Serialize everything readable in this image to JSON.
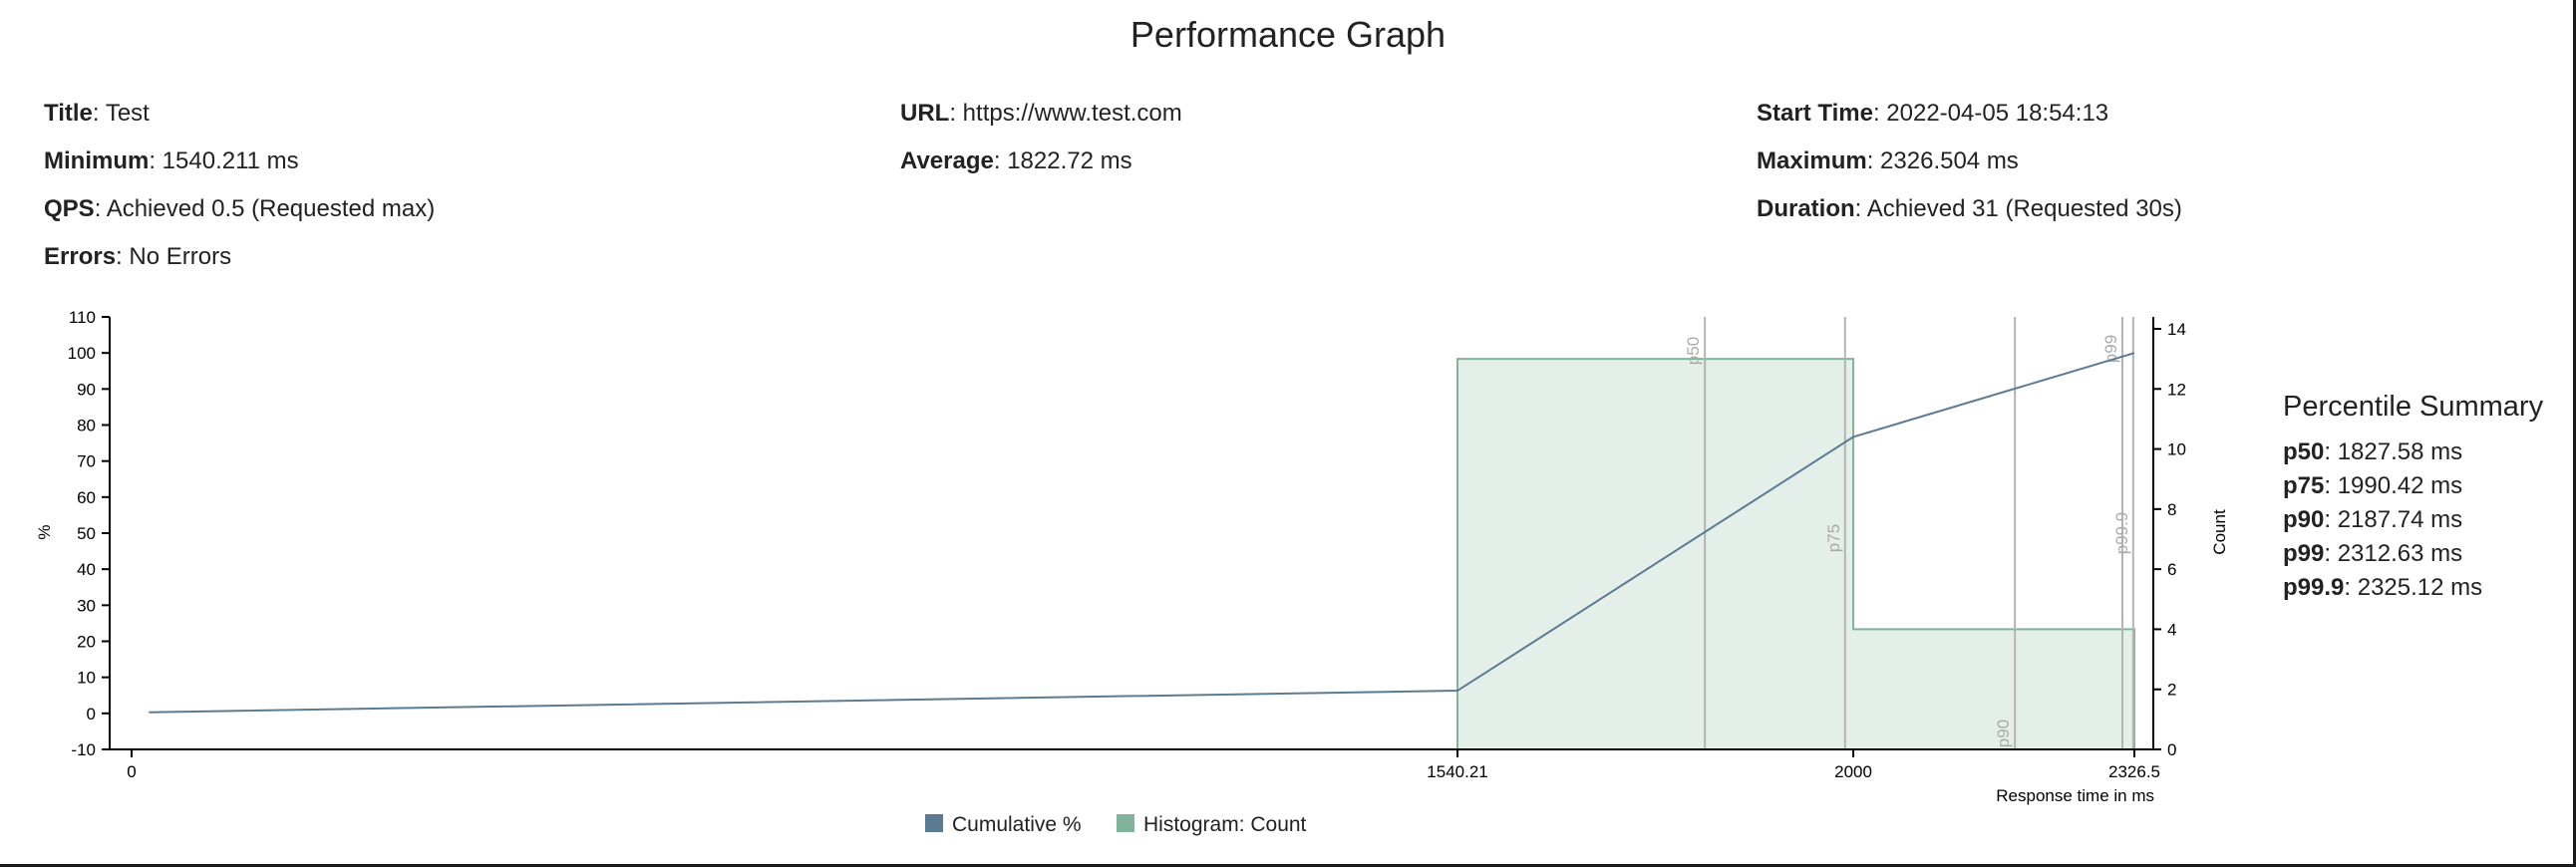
{
  "page": {
    "title": "Performance Graph"
  },
  "info": {
    "title": {
      "label": "Title",
      "value": "Test"
    },
    "url": {
      "label": "URL",
      "value": "https://www.test.com"
    },
    "start_time": {
      "label": "Start Time",
      "value": "2022-04-05 18:54:13"
    },
    "minimum": {
      "label": "Minimum",
      "value": "1540.211 ms"
    },
    "average": {
      "label": "Average",
      "value": "1822.72 ms"
    },
    "maximum": {
      "label": "Maximum",
      "value": "2326.504 ms"
    },
    "qps": {
      "label": "QPS",
      "value": "Achieved 0.5 (Requested max)"
    },
    "duration": {
      "label": "Duration",
      "value": "Achieved 31 (Requested 30s)"
    },
    "errors": {
      "label": "Errors",
      "value": "No Errors"
    }
  },
  "percentile_summary": {
    "title": "Percentile Summary",
    "rows": [
      {
        "label": "p50",
        "value": "1827.58 ms"
      },
      {
        "label": "p75",
        "value": "1990.42 ms"
      },
      {
        "label": "p90",
        "value": "2187.74 ms"
      },
      {
        "label": "p99",
        "value": "2312.63 ms"
      },
      {
        "label": "p99.9",
        "value": "2325.12 ms"
      }
    ]
  },
  "chart_data": {
    "type": "line",
    "xlabel": "Response time in ms",
    "ylabel": "%",
    "y2label": "Count",
    "ylim": [
      -10,
      110
    ],
    "y2lim": [
      0,
      14
    ],
    "x_ticks": [
      {
        "value": 0,
        "label": "0"
      },
      {
        "value": 1540.21,
        "label": "1540.21"
      },
      {
        "value": 2000,
        "label": "2000"
      },
      {
        "value": 2326.5,
        "label": "2326.5"
      }
    ],
    "y_ticks": [
      -10,
      0,
      10,
      20,
      30,
      40,
      50,
      60,
      70,
      80,
      90,
      100,
      110
    ],
    "y2_ticks": [
      0,
      2,
      4,
      6,
      8,
      10,
      12,
      14
    ],
    "series": [
      {
        "name": "Cumulative %",
        "kind": "line",
        "color": "#5b7b93",
        "points": [
          [
            20,
            0.3
          ],
          [
            1540.21,
            6.3
          ],
          [
            2000,
            76.7
          ],
          [
            2326.5,
            100
          ]
        ]
      },
      {
        "name": "Histogram: Count",
        "kind": "histogram",
        "color": "#7fb39b",
        "fill": "#e4efea",
        "bins": [
          {
            "x0": 1540.21,
            "x1": 2000,
            "count": 13
          },
          {
            "x0": 2000,
            "x1": 2326.5,
            "count": 4
          }
        ]
      }
    ],
    "percentile_markers": [
      {
        "label": "p50",
        "value": 1827.58
      },
      {
        "label": "p75",
        "value": 1990.42
      },
      {
        "label": "p90",
        "value": 2187.74
      },
      {
        "label": "p99",
        "value": 2312.63
      },
      {
        "label": "p99.9",
        "value": 2325.12
      }
    ],
    "legend": {
      "position": "bottom",
      "items": [
        {
          "label": "Cumulative %",
          "color": "#5b7b93"
        },
        {
          "label": "Histogram: Count",
          "color": "#7fb39b"
        }
      ]
    },
    "grid": false
  }
}
